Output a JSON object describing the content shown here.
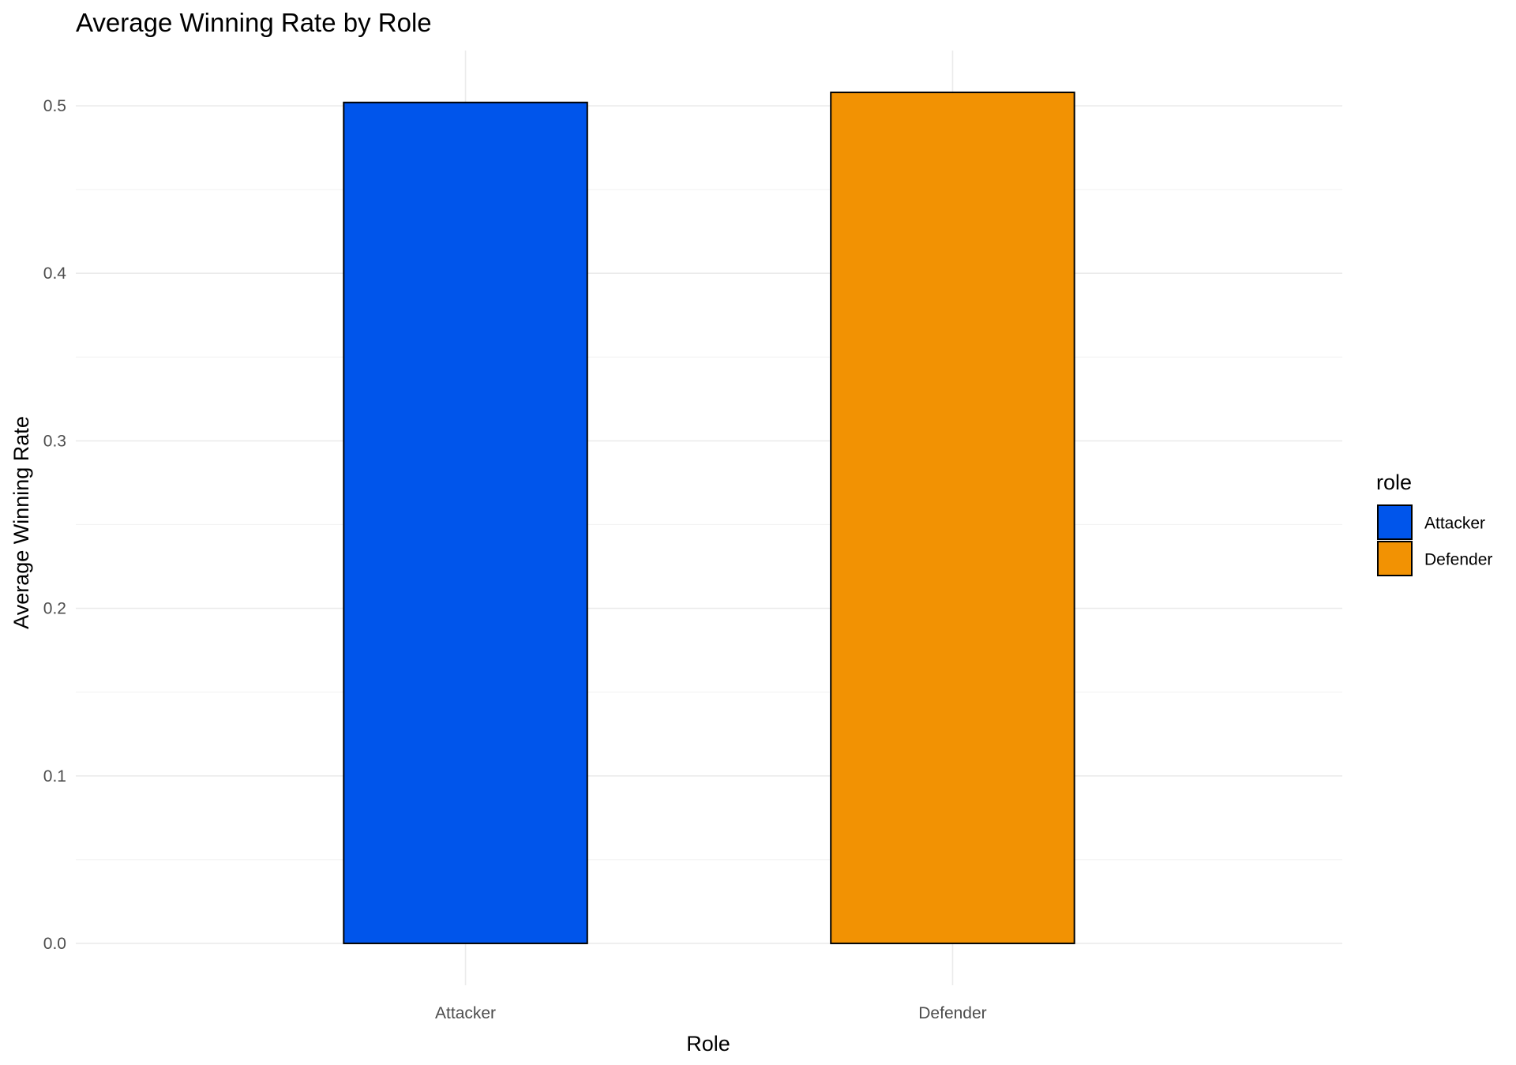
{
  "chart_data": {
    "type": "bar",
    "title": "Average Winning Rate by Role",
    "xlabel": "Role",
    "ylabel": "Average Winning Rate",
    "categories": [
      "Attacker",
      "Defender"
    ],
    "values": [
      0.502,
      0.508
    ],
    "colors": [
      "#0055EB",
      "#F29203"
    ],
    "bar_outline_color": "#000000",
    "ylim": [
      -0.025,
      0.533
    ],
    "yticks": [
      0.0,
      0.1,
      0.2,
      0.3,
      0.4,
      0.5
    ],
    "ytick_labels": [
      "0.0",
      "0.1",
      "0.2",
      "0.3",
      "0.4",
      "0.5"
    ],
    "grid": true,
    "legend": {
      "title": "role",
      "position": "right",
      "entries": [
        "Attacker",
        "Defender"
      ]
    }
  }
}
